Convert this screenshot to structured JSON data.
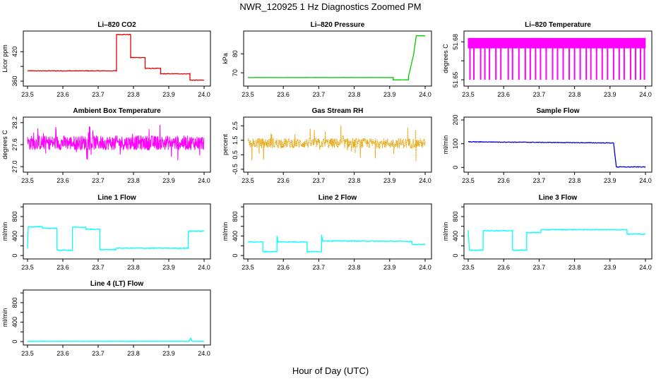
{
  "figure": {
    "title": "NWR_120925  1 Hz Diagnostics Zoomed PM",
    "xlabel": "Hour of Day (UTC)"
  },
  "colors": {
    "red": "#e00000",
    "green": "#00c800",
    "magenta": "#ff00ff",
    "orange": "#e8a000",
    "blue": "#0000d0",
    "cyan": "#00ffff"
  },
  "x_ticks": [
    "23.5",
    "23.6",
    "23.7",
    "23.8",
    "23.9",
    "24.0"
  ],
  "chart_data": [
    {
      "type": "line",
      "title": "Li–820 CO2",
      "ylabel": "Licor ppm",
      "xlim": [
        23.5,
        24.0
      ],
      "ylim": [
        350,
        462
      ],
      "yticks": [
        360,
        390,
        420
      ],
      "ytick_labels": [
        "360",
        "",
        "420"
      ],
      "color": "red",
      "noise": 0.6,
      "segments": [
        [
          23.5,
          23.752,
          381
        ],
        [
          23.752,
          23.792,
          455
        ],
        [
          23.792,
          23.833,
          408
        ],
        [
          23.833,
          23.877,
          386
        ],
        [
          23.877,
          23.96,
          375
        ],
        [
          23.96,
          24.0,
          362
        ]
      ]
    },
    {
      "type": "line",
      "title": "Li–820 Pressure",
      "ylabel": "kPa",
      "xlim": [
        23.5,
        24.0
      ],
      "ylim": [
        63,
        92
      ],
      "yticks": [
        70,
        80
      ],
      "ytick_labels": [
        "70",
        "80"
      ],
      "color": "green",
      "noise": 0.05,
      "segments": [
        [
          23.5,
          23.91,
          67.5
        ],
        [
          23.91,
          23.953,
          66.3
        ],
        [
          23.953,
          23.968,
          68.0,
          80.0
        ],
        [
          23.968,
          23.975,
          80.0,
          89.5
        ],
        [
          23.975,
          24.0,
          89.5
        ]
      ]
    },
    {
      "type": "band",
      "title": "Li–820 Temperature",
      "ylabel": "degrees C",
      "xlim": [
        23.5,
        24.0
      ],
      "ylim": [
        51.645,
        51.6885
      ],
      "yticks": [
        51.65,
        51.665,
        51.68
      ],
      "ytick_labels": [
        "51.65",
        "",
        "51.68"
      ],
      "color": "magenta",
      "low": 51.65,
      "high": 51.683,
      "step": 51.675,
      "dips": [
        23.505,
        23.516,
        23.535,
        23.547,
        23.56,
        23.578,
        23.592,
        23.613,
        23.625,
        23.643,
        23.661,
        23.675,
        23.69,
        23.704,
        23.72,
        23.738,
        23.752,
        23.768,
        23.785,
        23.8,
        23.816,
        23.833,
        23.846,
        23.862,
        23.878,
        23.893,
        23.91,
        23.926,
        23.94,
        23.958,
        23.972,
        23.986,
        23.997
      ]
    },
    {
      "type": "noise",
      "title": "Ambient Box Temperature",
      "ylabel": "degrees C",
      "xlim": [
        23.5,
        24.0
      ],
      "ylim": [
        26.85,
        28.35
      ],
      "yticks": [
        27.0,
        27.6,
        28.2
      ],
      "ytick_labels": [
        "27.0",
        "27.6",
        "28.2"
      ],
      "color": "magenta",
      "center": 27.65,
      "amp": 0.2,
      "spike": 0.5,
      "density": 600
    },
    {
      "type": "noise",
      "title": "Gas Stream RH",
      "ylabel": "percent",
      "xlim": [
        23.5,
        24.0
      ],
      "ylim": [
        -0.7,
        3.1
      ],
      "yticks": [
        -0.5,
        0.5,
        1.5,
        2.5
      ],
      "ytick_labels": [
        "-0.5",
        "0.5",
        "1.5",
        "2.5"
      ],
      "color": "orange",
      "center": 1.3,
      "amp": 0.35,
      "spike": 1.3,
      "density": 520
    },
    {
      "type": "line",
      "title": "Sample Flow",
      "ylabel": "ml/min",
      "xlim": [
        23.5,
        24.0
      ],
      "ylim": [
        -20,
        212
      ],
      "yticks": [
        0,
        100,
        200
      ],
      "ytick_labels": [
        "0",
        "100",
        "200"
      ],
      "color": "blue",
      "noise": 1.2,
      "segments": [
        [
          23.5,
          23.91,
          108,
          103
        ],
        [
          23.91,
          23.918,
          103,
          2
        ],
        [
          23.918,
          24.0,
          2
        ]
      ]
    },
    {
      "type": "line",
      "title": "Line 1 Flow",
      "ylabel": "ml/min",
      "xlim": [
        23.5,
        24.0
      ],
      "ylim": [
        -70,
        1060
      ],
      "yticks": [
        0,
        200,
        400,
        600,
        800,
        1000
      ],
      "ytick_labels": [
        "0",
        "",
        "400",
        "",
        "800",
        ""
      ],
      "color": "cyan",
      "noise": 8,
      "segments": [
        [
          23.5,
          23.502,
          130,
          590
        ],
        [
          23.502,
          23.542,
          590
        ],
        [
          23.542,
          23.583,
          560
        ],
        [
          23.583,
          23.627,
          110
        ],
        [
          23.627,
          23.665,
          580
        ],
        [
          23.665,
          23.705,
          540
        ],
        [
          23.705,
          23.75,
          120
        ],
        [
          23.75,
          23.955,
          150
        ],
        [
          23.955,
          24.0,
          500
        ]
      ]
    },
    {
      "type": "line",
      "title": "Line 2 Flow",
      "ylabel": "ml/min",
      "xlim": [
        23.5,
        24.0
      ],
      "ylim": [
        -70,
        1060
      ],
      "yticks": [
        0,
        200,
        400,
        600,
        800,
        1000
      ],
      "ytick_labels": [
        "0",
        "",
        "400",
        "",
        "800",
        ""
      ],
      "color": "cyan",
      "noise": 8,
      "segments": [
        [
          23.5,
          23.542,
          280
        ],
        [
          23.542,
          23.582,
          80
        ],
        [
          23.582,
          23.585,
          400,
          280
        ],
        [
          23.585,
          23.667,
          280
        ],
        [
          23.667,
          23.708,
          80
        ],
        [
          23.708,
          23.711,
          430,
          290
        ],
        [
          23.711,
          23.963,
          300,
          290
        ],
        [
          23.963,
          24.0,
          230
        ]
      ]
    },
    {
      "type": "line",
      "title": "Line 3 Flow",
      "ylabel": "ml/min",
      "xlim": [
        23.5,
        24.0
      ],
      "ylim": [
        -70,
        1060
      ],
      "yticks": [
        0,
        200,
        400,
        600,
        800,
        1000
      ],
      "ytick_labels": [
        "0",
        "",
        "400",
        "",
        "800",
        ""
      ],
      "color": "cyan",
      "noise": 8,
      "segments": [
        [
          23.5,
          23.503,
          520,
          120
        ],
        [
          23.503,
          23.542,
          110
        ],
        [
          23.542,
          23.625,
          510
        ],
        [
          23.625,
          23.665,
          110
        ],
        [
          23.665,
          23.705,
          470
        ],
        [
          23.705,
          23.948,
          530
        ],
        [
          23.948,
          24.0,
          440
        ]
      ]
    },
    {
      "type": "line",
      "title": "Line 4 (LT) Flow",
      "ylabel": "ml/min",
      "xlim": [
        23.5,
        24.0
      ],
      "ylim": [
        -70,
        1060
      ],
      "yticks": [
        0,
        200,
        400,
        600,
        800,
        1000
      ],
      "ytick_labels": [
        "0",
        "",
        "400",
        "",
        "800",
        ""
      ],
      "color": "cyan",
      "noise": 2,
      "segments": [
        [
          23.5,
          23.958,
          5
        ],
        [
          23.958,
          23.962,
          5,
          80
        ],
        [
          23.962,
          23.966,
          80,
          5
        ],
        [
          23.966,
          24.0,
          5
        ]
      ]
    }
  ]
}
